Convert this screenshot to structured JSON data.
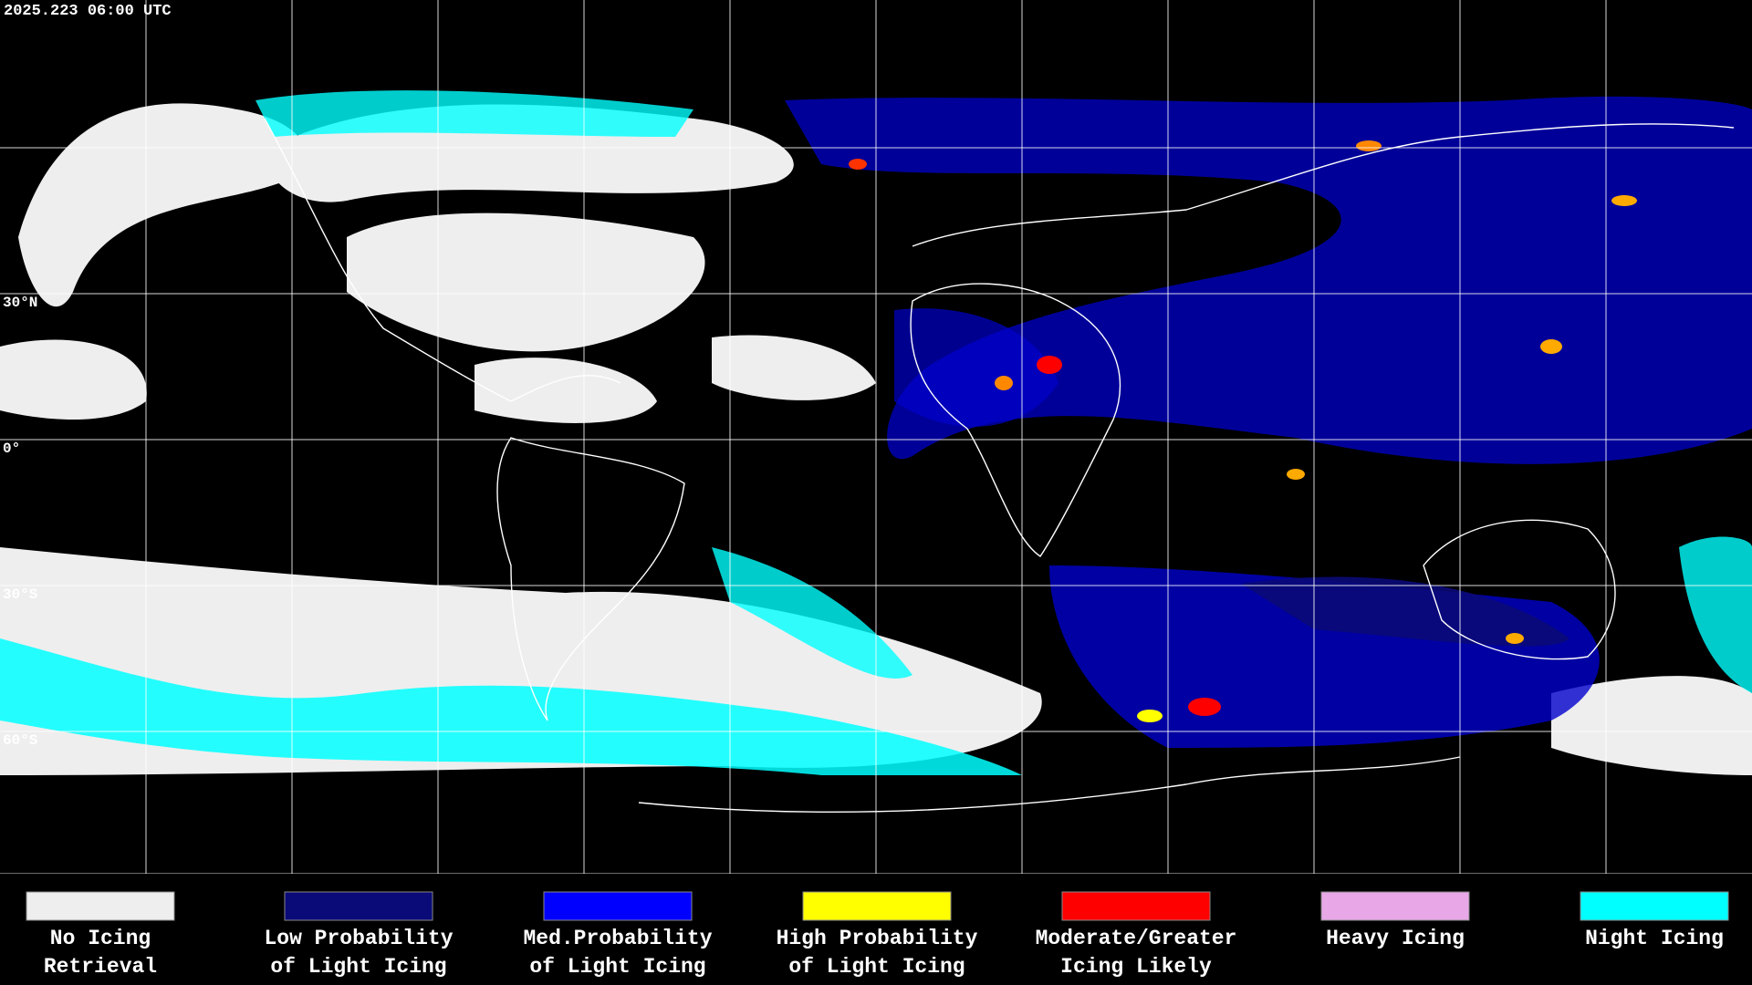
{
  "header": {
    "title": "2025.223 06:00 UTC"
  },
  "latitude_labels": [
    "30°N",
    "0°",
    "30°S",
    "60°S"
  ],
  "legend": [
    {
      "color": "#eeeeee",
      "lines": [
        "No Icing",
        "Retrieval"
      ]
    },
    {
      "color": "#0a0a78",
      "lines": [
        "Low Probability",
        "of Light Icing"
      ]
    },
    {
      "color": "#0000ff",
      "lines": [
        "Med.Probability",
        "of Light Icing"
      ]
    },
    {
      "color": "#ffff00",
      "lines": [
        "High Probability",
        "of Light Icing"
      ]
    },
    {
      "color": "#ff0000",
      "lines": [
        "Moderate/Greater",
        "Icing Likely"
      ]
    },
    {
      "color": "#e8a8e8",
      "lines": [
        "Heavy Icing"
      ]
    },
    {
      "color": "#00ffff",
      "lines": [
        "Night Icing"
      ]
    }
  ]
}
